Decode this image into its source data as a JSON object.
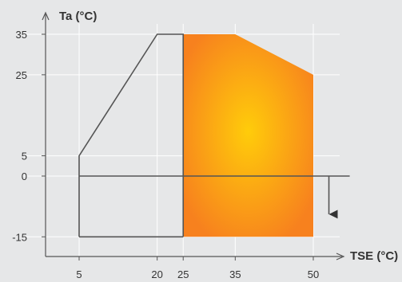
{
  "chart_data": {
    "type": "area",
    "x_axis": {
      "label": "TSE (°C)",
      "range": [
        -4,
        65
      ],
      "tick_labels": [
        {
          "value": 5,
          "label": "5"
        },
        {
          "value": 20,
          "label": "20"
        },
        {
          "value": 25,
          "label": "25"
        },
        {
          "value": 35,
          "label": "35"
        },
        {
          "value": 50,
          "label": "50"
        }
      ]
    },
    "y_axis": {
      "label": "Ta (°C)",
      "range": [
        -18,
        42
      ],
      "tick_labels": [
        {
          "value": 35,
          "label": "35"
        },
        {
          "value": 25,
          "label": "25"
        },
        {
          "value": 5,
          "label": "5"
        },
        {
          "value": 0,
          "label": "0"
        },
        {
          "value": -15,
          "label": "-15"
        }
      ]
    },
    "grid": true,
    "envelope_outline": [
      {
        "x": 5,
        "y": -15
      },
      {
        "x": 5,
        "y": 5
      },
      {
        "x": 20,
        "y": 35
      },
      {
        "x": 25,
        "y": 35
      },
      {
        "x": 25,
        "y": -15
      }
    ],
    "highlighted_region": [
      {
        "x": 25,
        "y": -15
      },
      {
        "x": 25,
        "y": 35
      },
      {
        "x": 35,
        "y": 35
      },
      {
        "x": 50,
        "y": 25
      },
      {
        "x": 50,
        "y": -15
      }
    ],
    "zero_line": {
      "y": 0,
      "x_from": 5,
      "x_to": 57
    },
    "down_arrow": {
      "x": 53,
      "y_from": 0,
      "y_to": -11
    },
    "colors": {
      "background": "#e6e7e8",
      "grid": "#ffffff",
      "outline": "#555555",
      "region_center": "#ffcc0a",
      "region_edge": "#f7811e",
      "text": "#333333"
    }
  }
}
